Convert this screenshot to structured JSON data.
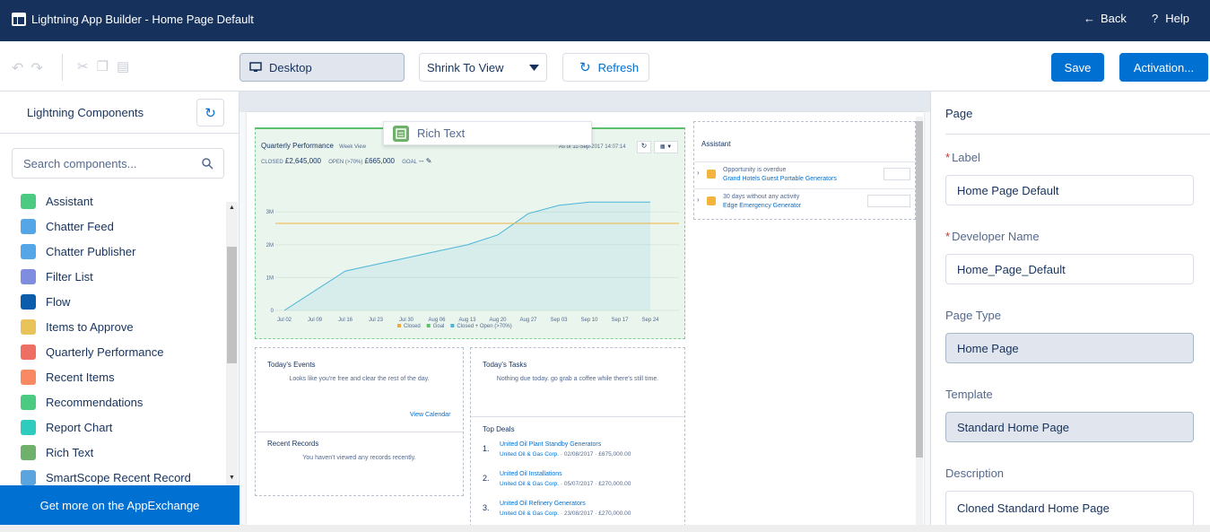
{
  "header": {
    "title": "Lightning App Builder - Home Page Default",
    "back": "Back",
    "help": "Help"
  },
  "toolbar": {
    "view": "Desktop",
    "zoom": "Shrink To View",
    "refresh": "Refresh",
    "save": "Save",
    "activation": "Activation..."
  },
  "components_panel": {
    "title": "Lightning Components",
    "search_placeholder": "Search components...",
    "items": [
      "Assistant",
      "Chatter Feed",
      "Chatter Publisher",
      "Filter List",
      "Flow",
      "Items to Approve",
      "Quarterly Performance",
      "Recent Items",
      "Recommendations",
      "Report Chart",
      "Rich Text",
      "SmartScope Recent Record"
    ],
    "footer": "Get more on the AppExchange"
  },
  "canvas": {
    "drag_ghost": "Rich Text",
    "quarterly_performance": {
      "title": "Quarterly Performance",
      "view": "Week View",
      "as_of": "As of 11-Sep-2017 14:07:14",
      "closed_label": "CLOSED",
      "closed_value": "£2,645,000",
      "open_label": "OPEN (>70%)",
      "open_value": "£665,000",
      "goal_label": "GOAL",
      "goal_value": "--",
      "chart": {
        "type": "line",
        "categories": [
          "Jul 02",
          "Jul 09",
          "Jul 16",
          "Jul 23",
          "Jul 30",
          "Aug 06",
          "Aug 13",
          "Aug 20",
          "Aug 27",
          "Sep 03",
          "Sep 10",
          "Sep 17",
          "Sep 24"
        ],
        "series": [
          {
            "name": "Closed + Open (>70%)",
            "color": "#4bb4d8",
            "values": [
              0,
              0.6,
              1.2,
              1.4,
              1.6,
              1.8,
              2.0,
              2.3,
              2.95,
              3.2,
              3.3,
              3.3,
              3.3
            ]
          }
        ],
        "goal": {
          "value": 2.65,
          "color": "#f3b33d"
        },
        "legend": [
          {
            "name": "Closed",
            "color": "#f3a83b"
          },
          {
            "name": "Goal",
            "color": "#5bbf6b"
          },
          {
            "name": "Closed + Open (>70%)",
            "color": "#4bb4d8"
          }
        ],
        "ylim": [
          0,
          4.1
        ],
        "yticks": [
          0,
          {
            "value": 1,
            "label": "1M"
          },
          {
            "value": 2,
            "label": "2M"
          },
          {
            "value": 3,
            "label": "3M"
          }
        ]
      }
    },
    "assistant": {
      "title": "Assistant",
      "items": [
        {
          "title": "Opportunity is overdue",
          "link": "Grand Hotels Guest Portable Generators"
        },
        {
          "title": "30 days without any activity",
          "link": "Edge Emergency Generator"
        }
      ]
    },
    "todays_events": {
      "title": "Today's Events",
      "message": "Looks like you're free and clear the rest of the day.",
      "link": "View Calendar"
    },
    "recent_records": {
      "title": "Recent Records",
      "message": "You haven't viewed any records recently."
    },
    "todays_tasks": {
      "title": "Today's Tasks",
      "message": "Nothing due today. go grab a coffee while there's still time."
    },
    "top_deals": {
      "title": "Top Deals",
      "items": [
        {
          "number": "1.",
          "name": "United Oil Plant Standby Generators",
          "account": "United Oil & Gas Corp.",
          "date": "02/08/2017",
          "amount": "£675,000.00"
        },
        {
          "number": "2.",
          "name": "United Oil Installations",
          "account": "United Oil & Gas Corp.",
          "date": "05/07/2017",
          "amount": "£270,000.00"
        },
        {
          "number": "3.",
          "name": "United Oil Refinery Generators",
          "account": "United Oil & Gas Corp.",
          "date": "23/08/2017",
          "amount": "£270,000.00"
        }
      ]
    }
  },
  "properties": {
    "title": "Page",
    "fields": [
      {
        "marker": "*",
        "label": "Label",
        "value": "Home Page Default",
        "readonly": false
      },
      {
        "marker": "*",
        "label": "Developer Name",
        "value": "Home_Page_Default",
        "readonly": false
      },
      {
        "label": "Page Type",
        "value": "Home Page",
        "readonly": true
      },
      {
        "label": "Template",
        "value": "Standard Home Page",
        "readonly": true
      },
      {
        "label": "Description",
        "value": "Cloned Standard Home Page",
        "readonly": false
      }
    ]
  }
}
